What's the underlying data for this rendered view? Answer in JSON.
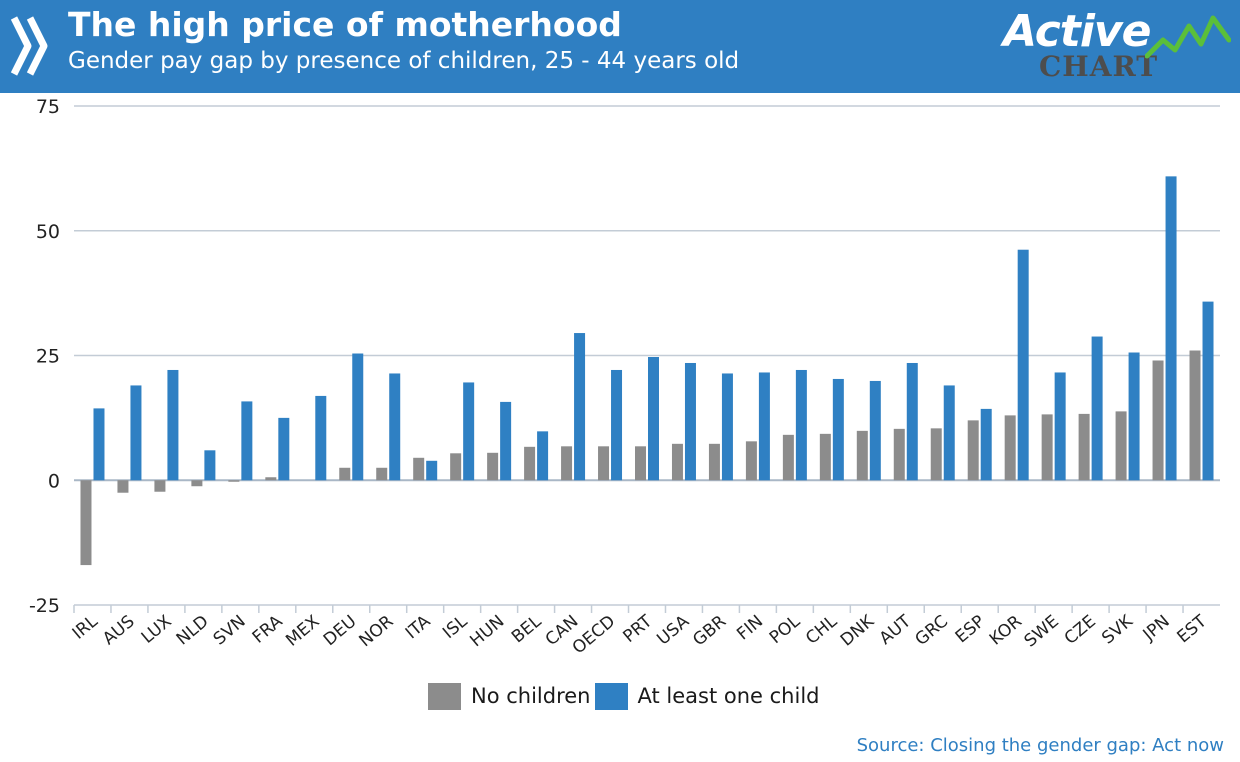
{
  "header": {
    "title": "The high price of motherhood",
    "subtitle": "Gender pay gap by presence of children, 25 - 44 years old"
  },
  "logo": {
    "word1": "Active",
    "word2": "CHART"
  },
  "colors": {
    "header_bg": "#2f7fc2",
    "no_children": "#8c8c8c",
    "one_child": "#2f80c3",
    "source_text": "#2f7fc2",
    "logo_trend": "#5bbf3a"
  },
  "icons": {
    "header_mark": "double-chevron-icon",
    "logo_mark": "trend-line-icon"
  },
  "chart_data": {
    "type": "bar",
    "title": "The high price of motherhood",
    "subtitle": "Gender pay gap by presence of children, 25 - 44 years old",
    "xlabel": "",
    "ylabel": "",
    "ylim": [
      -25,
      75
    ],
    "yticks": [
      -25,
      0,
      25,
      50,
      75
    ],
    "grid": true,
    "legend_position": "bottom",
    "categories": [
      "IRL",
      "AUS",
      "LUX",
      "NLD",
      "SVN",
      "FRA",
      "MEX",
      "DEU",
      "NOR",
      "ITA",
      "ISL",
      "HUN",
      "BEL",
      "CAN",
      "OECD",
      "PRT",
      "USA",
      "GBR",
      "FIN",
      "POL",
      "CHL",
      "DNK",
      "AUT",
      "GRC",
      "ESP",
      "KOR",
      "SWE",
      "CZE",
      "SVK",
      "JPN",
      "EST"
    ],
    "series": [
      {
        "name": "No children",
        "color": "#8c8c8c",
        "values": [
          -17,
          -2.5,
          -2.3,
          -1.2,
          -0.3,
          0.6,
          0,
          2.5,
          2.5,
          4.5,
          5.4,
          5.5,
          6.7,
          6.8,
          6.8,
          6.8,
          7.3,
          7.3,
          7.8,
          9.1,
          9.3,
          9.9,
          10.3,
          10.4,
          12,
          13,
          13.2,
          13.3,
          13.8,
          24,
          26
        ]
      },
      {
        "name": "At least one child",
        "color": "#2f80c3",
        "values": [
          14.4,
          19,
          22.1,
          6,
          15.8,
          12.5,
          16.9,
          25.4,
          21.4,
          3.9,
          19.6,
          15.7,
          9.8,
          29.5,
          22.1,
          24.7,
          23.5,
          21.4,
          21.6,
          22.1,
          20.3,
          19.9,
          23.5,
          19,
          14.3,
          46.2,
          21.6,
          28.8,
          25.6,
          60.9,
          35.8
        ]
      }
    ]
  },
  "legend": {
    "no_children": "No children",
    "one_child": "At least one child"
  },
  "source": "Source: Closing the gender gap: Act now"
}
